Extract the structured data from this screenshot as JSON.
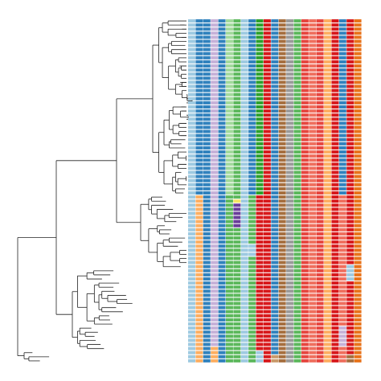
{
  "figure": {
    "type": "phylogenetic-tree-with-trait-heatmap",
    "tip_count": 84,
    "trait_columns": 23,
    "tree": {
      "line_color": "#222222"
    }
  },
  "palette": {
    "blue_light": "#9ecae1",
    "blue": "#3182bd",
    "blue_dark": "#1f5f8b",
    "purple_light": "#c6b1d8",
    "purple": "#6a3d9a",
    "green_light": "#a1d99b",
    "green": "#5cb85c",
    "green_dark": "#2ca02c",
    "teal": "#2b8c7a",
    "red": "#d7191c",
    "red_mid": "#e6463f",
    "salmon": "#ef6f5e",
    "orange_light": "#fdae61",
    "orange": "#f28c28",
    "orange_dark": "#e8731a",
    "brown": "#a66f3f",
    "tan": "#c99a6b",
    "grey": "#9a9a9a",
    "yellow": "#f5e663"
  },
  "heatmap": {
    "top_block_columns": [
      "blue_light",
      "blue",
      "blue",
      "purple_light",
      "blue",
      "green_light",
      "green",
      "blue_light",
      "blue",
      "green_dark",
      "red",
      "blue",
      "brown",
      "grey",
      "green",
      "red_mid",
      "salmon",
      "red_mid",
      "orange_light",
      "red",
      "blue",
      "red",
      "orange_dark"
    ],
    "bottom_block_columns": [
      "blue_light",
      "orange_light",
      "blue",
      "purple_light",
      "blue",
      "green",
      "green",
      "blue_light",
      "green",
      "red",
      "red",
      "blue",
      "brown",
      "grey",
      "green",
      "red_mid",
      "salmon",
      "red_mid",
      "orange_light",
      "red",
      "salmon",
      "red",
      "orange_dark"
    ],
    "top_block_rows": 43,
    "variant_cells": [
      {
        "row": 44,
        "col": 6,
        "color": "yellow"
      },
      {
        "row": 45,
        "col": 6,
        "color": "purple"
      },
      {
        "row": 46,
        "col": 6,
        "color": "purple"
      },
      {
        "row": 47,
        "col": 6,
        "color": "purple"
      },
      {
        "row": 48,
        "col": 6,
        "color": "purple"
      },
      {
        "row": 49,
        "col": 6,
        "color": "purple"
      },
      {
        "row": 50,
        "col": 6,
        "color": "purple"
      },
      {
        "row": 55,
        "col": 8,
        "color": "blue_light"
      },
      {
        "row": 56,
        "col": 8,
        "color": "blue_light"
      },
      {
        "row": 57,
        "col": 8,
        "color": "blue_light"
      },
      {
        "row": 60,
        "col": 21,
        "color": "blue_light"
      },
      {
        "row": 61,
        "col": 21,
        "color": "blue_light"
      },
      {
        "row": 62,
        "col": 21,
        "color": "blue_light"
      },
      {
        "row": 63,
        "col": 21,
        "color": "blue_light"
      },
      {
        "row": 75,
        "col": 20,
        "color": "purple_light"
      },
      {
        "row": 76,
        "col": 20,
        "color": "purple_light"
      },
      {
        "row": 77,
        "col": 20,
        "color": "purple_light"
      },
      {
        "row": 78,
        "col": 20,
        "color": "purple_light"
      },
      {
        "row": 79,
        "col": 20,
        "color": "purple_light"
      },
      {
        "row": 80,
        "col": 3,
        "color": "orange_light"
      },
      {
        "row": 81,
        "col": 3,
        "color": "orange_light"
      },
      {
        "row": 82,
        "col": 3,
        "color": "orange_light"
      },
      {
        "row": 83,
        "col": 3,
        "color": "orange_light"
      },
      {
        "row": 81,
        "col": 9,
        "color": "blue_light"
      },
      {
        "row": 82,
        "col": 9,
        "color": "blue_light"
      },
      {
        "row": 83,
        "col": 9,
        "color": "blue_light"
      },
      {
        "row": 82,
        "col": 11,
        "color": "tan"
      },
      {
        "row": 83,
        "col": 11,
        "color": "tan"
      },
      {
        "row": 83,
        "col": 21,
        "color": "brown"
      },
      {
        "row": 82,
        "col": 21,
        "color": "brown"
      }
    ]
  }
}
